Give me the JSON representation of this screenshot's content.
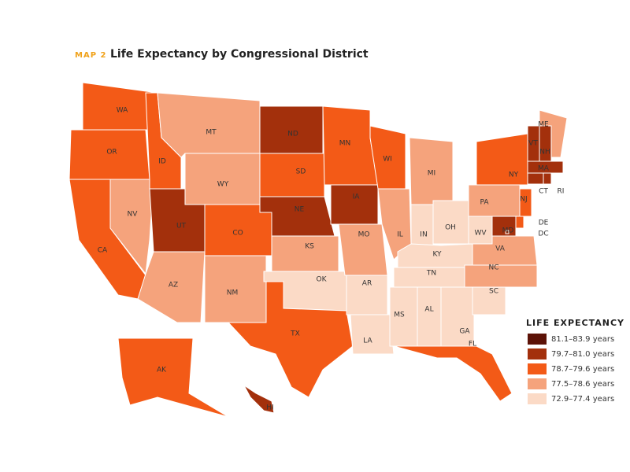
{
  "header": {
    "map_number": "MAP 2",
    "title": "Life Expectancy by Congressional District"
  },
  "legend": {
    "title": "LIFE EXPECTANCY",
    "items": [
      {
        "label": "81.1–83.9 years",
        "color": "#5c1207"
      },
      {
        "label": "79.7–81.0 years",
        "color": "#a3300c"
      },
      {
        "label": "78.7–79.6 years",
        "color": "#f35a17"
      },
      {
        "label": "77.5–78.6 years",
        "color": "#f5a37c"
      },
      {
        "label": "72.9–77.4 years",
        "color": "#fbdac6"
      }
    ]
  },
  "states": [
    {
      "label": "WA",
      "class": 2
    },
    {
      "label": "OR",
      "class": 2
    },
    {
      "label": "CA",
      "class": 2
    },
    {
      "label": "NV",
      "class": 3
    },
    {
      "label": "ID",
      "class": 2
    },
    {
      "label": "MT",
      "class": 3
    },
    {
      "label": "WY",
      "class": 3
    },
    {
      "label": "UT",
      "class": 1
    },
    {
      "label": "CO",
      "class": 2
    },
    {
      "label": "AZ",
      "class": 3
    },
    {
      "label": "NM",
      "class": 3
    },
    {
      "label": "ND",
      "class": 1
    },
    {
      "label": "SD",
      "class": 2
    },
    {
      "label": "NE",
      "class": 1
    },
    {
      "label": "KS",
      "class": 3
    },
    {
      "label": "OK",
      "class": 4
    },
    {
      "label": "TX",
      "class": 2
    },
    {
      "label": "MN",
      "class": 2
    },
    {
      "label": "IA",
      "class": 1
    },
    {
      "label": "MO",
      "class": 3
    },
    {
      "label": "AR",
      "class": 4
    },
    {
      "label": "LA",
      "class": 4
    },
    {
      "label": "WI",
      "class": 2
    },
    {
      "label": "IL",
      "class": 3
    },
    {
      "label": "MI",
      "class": 3
    },
    {
      "label": "IN",
      "class": 4
    },
    {
      "label": "OH",
      "class": 4
    },
    {
      "label": "KY",
      "class": 4
    },
    {
      "label": "TN",
      "class": 4
    },
    {
      "label": "MS",
      "class": 4
    },
    {
      "label": "AL",
      "class": 4
    },
    {
      "label": "GA",
      "class": 4
    },
    {
      "label": "FL",
      "class": 2
    },
    {
      "label": "SC",
      "class": 4
    },
    {
      "label": "NC",
      "class": 3
    },
    {
      "label": "VA",
      "class": 3
    },
    {
      "label": "WV",
      "class": 4
    },
    {
      "label": "PA",
      "class": 3
    },
    {
      "label": "NY",
      "class": 2
    },
    {
      "label": "ME",
      "class": 3
    },
    {
      "label": "VT",
      "class": 1
    },
    {
      "label": "NH",
      "class": 1
    },
    {
      "label": "MA",
      "class": 1
    },
    {
      "label": "CT",
      "class": 1
    },
    {
      "label": "RI",
      "class": 1
    },
    {
      "label": "NJ",
      "class": 2
    },
    {
      "label": "DE",
      "class": 2
    },
    {
      "label": "MD",
      "class": 1
    },
    {
      "label": "DC",
      "class": 1
    },
    {
      "label": "AK",
      "class": 2
    },
    {
      "label": "HI",
      "class": 1
    }
  ]
}
